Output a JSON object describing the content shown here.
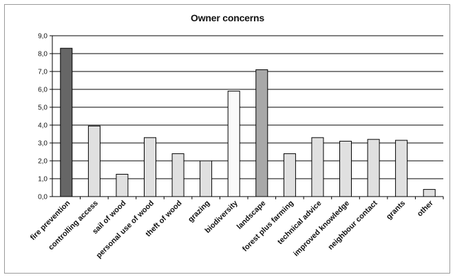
{
  "chart_data": {
    "type": "bar",
    "title": "Owner concerns",
    "xlabel": "",
    "ylabel": "",
    "ylim": [
      0,
      9
    ],
    "y_ticks": [
      "0,0",
      "1,0",
      "2,0",
      "3,0",
      "4,0",
      "5,0",
      "6,0",
      "7,0",
      "8,0",
      "9,0"
    ],
    "grid": true,
    "legend": "none",
    "categories": [
      "fire prevention",
      "controlling access",
      "sail of wood",
      "personal use of wood",
      "theft of wood",
      "grazing",
      "biodiversity",
      "landscape",
      "forest plus farming",
      "technical advice",
      "improved knowledge",
      "neighbour contact",
      "grants",
      "other"
    ],
    "values": [
      8.3,
      3.95,
      1.25,
      3.3,
      2.4,
      2.0,
      5.9,
      7.1,
      2.4,
      3.3,
      3.1,
      3.2,
      3.15,
      0.4
    ],
    "colors": [
      "#666666",
      "#e0e0e0",
      "#e0e0e0",
      "#e0e0e0",
      "#e0e0e0",
      "#e0e0e0",
      "#fafafa",
      "#a8a8a8",
      "#e0e0e0",
      "#e0e0e0",
      "#e0e0e0",
      "#e0e0e0",
      "#e0e0e0",
      "#e0e0e0"
    ]
  }
}
